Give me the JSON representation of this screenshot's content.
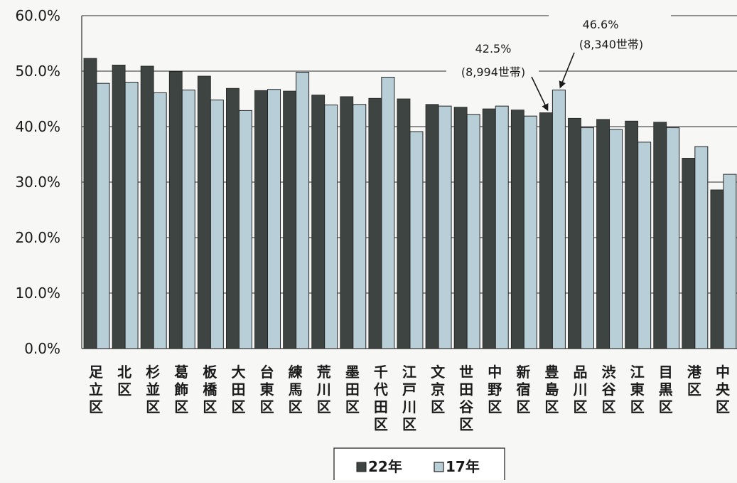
{
  "chart_data": {
    "type": "bar",
    "ylim": [
      0,
      60
    ],
    "yticks": [
      "0.0%",
      "10.0%",
      "20.0%",
      "30.0%",
      "40.0%",
      "50.0%",
      "60.0%"
    ],
    "grid": true,
    "legend_position": "bottom-center",
    "categories": [
      "足立区",
      "北区",
      "杉並区",
      "葛飾区",
      "板橋区",
      "大田区",
      "台東区",
      "練馬区",
      "荒川区",
      "墨田区",
      "千代田区",
      "江戸川区",
      "文京区",
      "世田谷区",
      "中野区",
      "新宿区",
      "豊島区",
      "品川区",
      "渋谷区",
      "江東区",
      "目黒区",
      "港区",
      "中央区"
    ],
    "series": [
      {
        "name": "22年",
        "color": "#3d4441",
        "values": [
          52.3,
          51.1,
          50.9,
          49.9,
          49.1,
          46.9,
          46.5,
          46.4,
          45.7,
          45.4,
          45.1,
          45.0,
          44.0,
          43.5,
          43.2,
          43.0,
          42.5,
          41.5,
          41.3,
          41.0,
          40.8,
          34.3,
          28.6
        ]
      },
      {
        "name": "17年",
        "color": "#b9cfd8",
        "values": [
          47.8,
          48.0,
          46.1,
          46.6,
          44.8,
          42.9,
          46.7,
          49.8,
          43.9,
          44.0,
          48.9,
          39.1,
          43.7,
          42.2,
          43.7,
          41.9,
          46.6,
          39.8,
          39.5,
          37.2,
          39.8,
          36.4,
          31.4
        ]
      }
    ],
    "annotations": [
      {
        "id": "toshima-22",
        "category": "豊島区",
        "series": "22年",
        "value_text": "42.5%",
        "detail_text": "(8,994世帯)"
      },
      {
        "id": "toshima-17",
        "category": "豊島区",
        "series": "17年",
        "value_text": "46.6%",
        "detail_text": "(8,340世帯)"
      }
    ]
  }
}
